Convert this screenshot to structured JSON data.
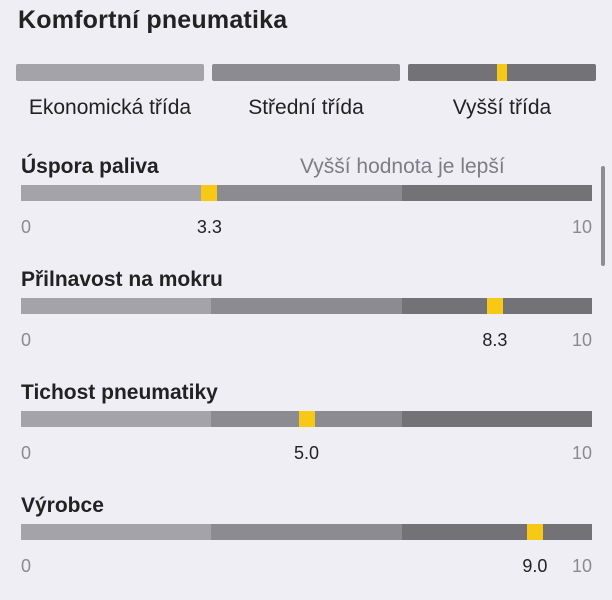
{
  "title": "Komfortní pneumatika",
  "class_legend": {
    "labels": [
      "Ekonomická třída",
      "Střední třída",
      "Vyšší třída"
    ],
    "marker_class_index": 2,
    "marker_position_fraction": 0.5
  },
  "hint": "Vyšší hodnota je lepší",
  "scale": {
    "min": "0",
    "max": "10"
  },
  "metrics": [
    {
      "label": "Úspora paliva",
      "value": 3.3,
      "value_text": "3.3"
    },
    {
      "label": "Přilnavost na mokru",
      "value": 8.3,
      "value_text": "8.3"
    },
    {
      "label": "Tichost pneumatiky",
      "value": 5.0,
      "value_text": "5.0"
    },
    {
      "label": "Výrobce",
      "value": 9.0,
      "value_text": "9.0"
    }
  ],
  "colors": {
    "background": "#efeef5",
    "segment_low": "#a3a3a9",
    "segment_mid": "#8b8b91",
    "segment_high": "#727277",
    "marker": "#f7c815"
  }
}
